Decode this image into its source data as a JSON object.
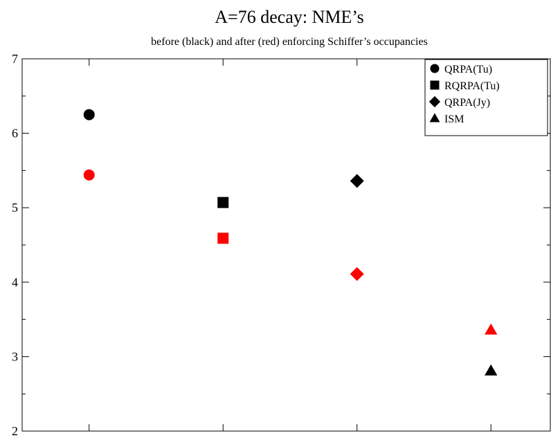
{
  "chart_data": {
    "type": "scatter",
    "title": "A=76 decay: NME’s",
    "subtitle": "before (black) and after (red)  enforcing Schiffer’s occupancies",
    "xlabel": "",
    "ylabel": "",
    "xlim": [
      0.5,
      4.5
    ],
    "ylim": [
      2,
      7
    ],
    "y_ticks": [
      "2",
      "3",
      "4",
      "5",
      "6",
      "7"
    ],
    "x_tick_positions": [
      1,
      2,
      3,
      4
    ],
    "grid": false,
    "legend_position": "top-right",
    "colors": {
      "before": "#000000",
      "after": "#ff0000"
    },
    "series": [
      {
        "name": "QRPA(Tu)",
        "marker": "circle",
        "x": 1,
        "before": 6.25,
        "after": 5.44
      },
      {
        "name": "RQRPA(Tu)",
        "marker": "square",
        "x": 2,
        "before": 5.07,
        "after": 4.59
      },
      {
        "name": "QRPA(Jy)",
        "marker": "diamond",
        "x": 3,
        "before": 5.36,
        "after": 4.11
      },
      {
        "name": "ISM",
        "marker": "triangle",
        "x": 4,
        "before": 2.81,
        "after": 3.36
      }
    ]
  }
}
